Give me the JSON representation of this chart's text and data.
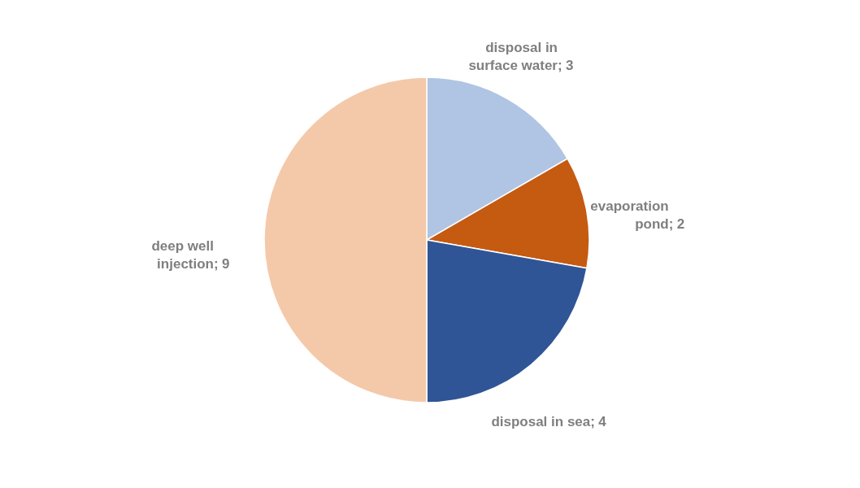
{
  "chart_data": {
    "type": "pie",
    "categories": [
      "disposal in surface water",
      "evaporation pond",
      "disposal in sea",
      "deep well injection"
    ],
    "values": [
      3,
      2,
      4,
      9
    ],
    "colors": [
      "#b0c4e3",
      "#c55a11",
      "#2f5597",
      "#f4c9aa"
    ],
    "annotations": [
      ";",
      ";",
      ";",
      ";"
    ],
    "data_labels": true,
    "legend": false
  }
}
